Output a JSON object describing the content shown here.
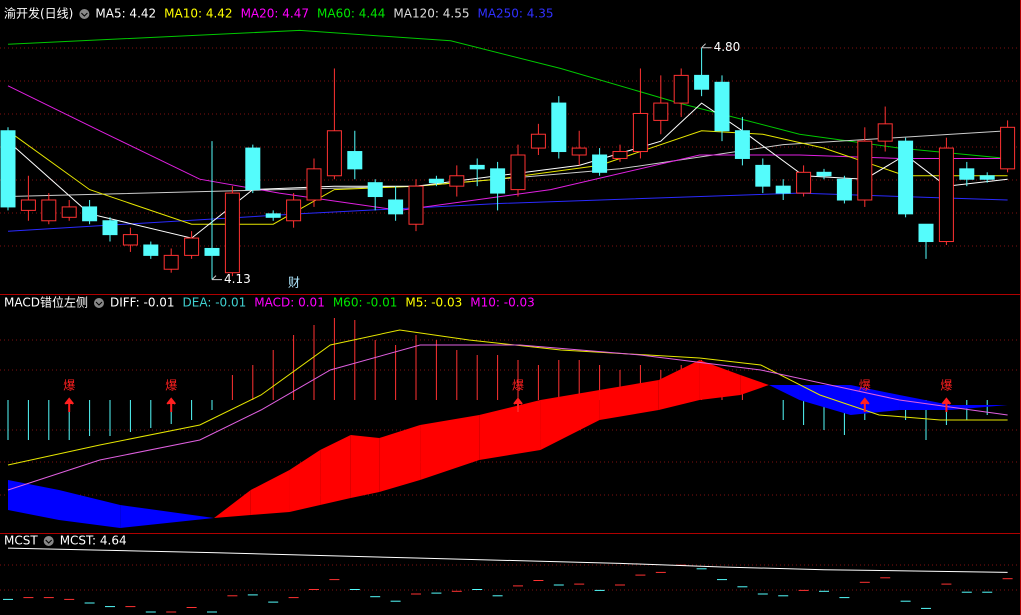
{
  "chart_data": [
    {
      "type": "candlestick",
      "title": "渝开发(日线)",
      "up_color": "#ff3232",
      "down_color": "#54fcfc",
      "ylim": [
        4.1,
        4.88
      ],
      "legend": [
        {
          "text": "MA5: 4.42",
          "color": "#ffffff"
        },
        {
          "text": "MA10: 4.42",
          "color": "#ffff00"
        },
        {
          "text": "MA20: 4.47",
          "color": "#ff00ff"
        },
        {
          "text": "MA60: 4.44",
          "color": "#00e600"
        },
        {
          "text": "MA120: 4.55",
          "color": "#dddddd"
        },
        {
          "text": "MA250: 4.35",
          "color": "#3030ff"
        }
      ],
      "candles": {
        "open": [
          4.56,
          4.33,
          4.3,
          4.31,
          4.34,
          4.3,
          4.23,
          4.23,
          4.16,
          4.2,
          4.22,
          4.15,
          4.51,
          4.32,
          4.3,
          4.36,
          4.43,
          4.5,
          4.41,
          4.36,
          4.29,
          4.42,
          4.4,
          4.46,
          4.45,
          4.39,
          4.51,
          4.64,
          4.49,
          4.49,
          4.48,
          4.5,
          4.59,
          4.64,
          4.72,
          4.7,
          4.56,
          4.46,
          4.4,
          4.38,
          4.44,
          4.42,
          4.36,
          4.53,
          4.53,
          4.29,
          4.24,
          4.45,
          4.43,
          4.45
        ],
        "high": [
          4.57,
          4.43,
          4.38,
          4.36,
          4.36,
          4.31,
          4.28,
          4.24,
          4.22,
          4.27,
          4.53,
          4.4,
          4.52,
          4.33,
          4.38,
          4.48,
          4.74,
          4.56,
          4.42,
          4.4,
          4.42,
          4.43,
          4.46,
          4.48,
          4.47,
          4.52,
          4.58,
          4.66,
          4.56,
          4.51,
          4.52,
          4.74,
          4.72,
          4.74,
          4.8,
          4.72,
          4.6,
          4.48,
          4.42,
          4.46,
          4.45,
          4.43,
          4.57,
          4.63,
          4.54,
          4.29,
          4.54,
          4.47,
          4.44,
          4.59
        ],
        "low": [
          4.33,
          4.3,
          4.29,
          4.3,
          4.29,
          4.24,
          4.21,
          4.19,
          4.15,
          4.19,
          4.13,
          4.14,
          4.38,
          4.3,
          4.28,
          4.34,
          4.42,
          4.42,
          4.33,
          4.3,
          4.27,
          4.4,
          4.37,
          4.4,
          4.33,
          4.37,
          4.49,
          4.48,
          4.46,
          4.43,
          4.47,
          4.48,
          4.55,
          4.6,
          4.66,
          4.53,
          4.46,
          4.38,
          4.36,
          4.37,
          4.42,
          4.35,
          4.34,
          4.5,
          4.31,
          4.19,
          4.23,
          4.4,
          4.41,
          4.44
        ],
        "close": [
          4.34,
          4.36,
          4.36,
          4.34,
          4.3,
          4.26,
          4.26,
          4.2,
          4.2,
          4.25,
          4.2,
          4.38,
          4.39,
          4.31,
          4.36,
          4.45,
          4.56,
          4.45,
          4.37,
          4.32,
          4.4,
          4.41,
          4.43,
          4.45,
          4.38,
          4.49,
          4.55,
          4.5,
          4.51,
          4.44,
          4.5,
          4.61,
          4.64,
          4.72,
          4.68,
          4.56,
          4.48,
          4.4,
          4.38,
          4.44,
          4.43,
          4.36,
          4.53,
          4.58,
          4.32,
          4.24,
          4.51,
          4.42,
          4.42,
          4.57
        ]
      },
      "lines": [
        {
          "color": "#00c800",
          "x": [
            0,
            14.3,
            21.7,
            27.1,
            32.9,
            38.8,
            43.7,
            49
          ],
          "values": [
            4.81,
            4.85,
            4.82,
            4.74,
            4.64,
            4.55,
            4.51,
            4.48
          ]
        },
        {
          "color": "#2a2aff",
          "x": [
            0,
            14.3,
            24.1,
            38.8,
            49
          ],
          "values": [
            4.27,
            4.32,
            4.35,
            4.38,
            4.36
          ]
        },
        {
          "color": "#cccccc",
          "x": [
            0,
            20,
            30,
            38,
            49
          ],
          "values": [
            4.37,
            4.4,
            4.45,
            4.52,
            4.56
          ]
        },
        {
          "color": "#e020e0",
          "x": [
            0,
            4.5,
            9.4,
            13.3,
            19.2,
            26.6,
            33.9,
            38.8,
            43.7,
            49
          ],
          "values": [
            4.69,
            4.56,
            4.42,
            4.38,
            4.33,
            4.39,
            4.49,
            4.49,
            4.48,
            4.48
          ]
        },
        {
          "color": "#e6e600",
          "x": [
            0,
            4,
            9,
            13,
            16,
            20,
            24,
            29,
            34,
            37,
            40,
            44,
            49
          ],
          "values": [
            4.56,
            4.39,
            4.29,
            4.29,
            4.39,
            4.4,
            4.42,
            4.46,
            4.56,
            4.55,
            4.51,
            4.43,
            4.43
          ]
        },
        {
          "color": "#ffffff",
          "x": [
            0,
            4,
            9,
            12,
            16,
            20,
            24,
            28,
            32,
            34,
            36,
            39,
            42,
            44,
            46,
            49
          ],
          "values": [
            4.53,
            4.32,
            4.25,
            4.39,
            4.4,
            4.4,
            4.43,
            4.46,
            4.53,
            4.64,
            4.56,
            4.43,
            4.42,
            4.49,
            4.4,
            4.42
          ]
        }
      ],
      "annotations": [
        {
          "text": "4.80",
          "value": 4.8,
          "x": 34
        },
        {
          "text": "4.13",
          "value": 4.13,
          "x": 10
        }
      ],
      "event": "财"
    },
    {
      "type": "macd",
      "title": "MACD错位左侧",
      "ylim": [
        -0.066,
        0.051
      ],
      "up_color": "#ff3232",
      "down_color": "#54fcfc",
      "legend": [
        {
          "text": "DIFF: -0.01",
          "color": "#ffffff"
        },
        {
          "text": "DEA: -0.01",
          "color": "#40d0d0"
        },
        {
          "text": "MACD: 0.01",
          "color": "#ff00ff"
        },
        {
          "text": "M60: -0.01",
          "color": "#00e600"
        },
        {
          "text": "M5: -0.03",
          "color": "#ffff00"
        },
        {
          "text": "M10: -0.03",
          "color": "#ff00ff"
        }
      ],
      "bars": [
        -0.02,
        -0.02,
        -0.02,
        -0.02,
        -0.018,
        -0.018,
        -0.016,
        -0.014,
        -0.012,
        -0.01,
        -0.005,
        0.0125,
        0.0175,
        0.025,
        0.0325,
        0.0375,
        0.041,
        0.04,
        0.03,
        0.0275,
        0.0325,
        0.03,
        0.025,
        0.0225,
        0.0225,
        0.02,
        0.0175,
        0.02,
        0.02,
        0.0175,
        0.015,
        0.0175,
        0.015,
        0.0175,
        0.02,
        0.015,
        0.0075,
        0,
        -0.01,
        -0.0125,
        -0.015,
        -0.0175,
        -0.01,
        -0.005,
        -0.01,
        -0.02,
        -0.0125,
        -0.01,
        -0.0075,
        0
      ],
      "lines": [
        {
          "color": "#e6e600",
          "x": [
            0,
            4.5,
            9.4,
            12.4,
            15.8,
            19.2,
            22.6,
            27.1,
            33.9,
            36.9,
            39.8,
            42.7,
            45.7,
            49
          ],
          "values": [
            -0.0325,
            -0.0225,
            -0.0125,
            0.0025,
            0.0275,
            0.035,
            0.03,
            0.025,
            0.021,
            0.0175,
            0.0025,
            -0.0075,
            -0.01,
            -0.01
          ]
        },
        {
          "color": "#e060e0",
          "x": [
            0,
            4.5,
            9.4,
            12.4,
            15.8,
            20.2,
            25.1,
            31,
            36.9,
            40.3,
            43.7,
            49
          ],
          "values": [
            -0.045,
            -0.03,
            -0.02,
            -0.005,
            0.015,
            0.0275,
            0.0275,
            0.0225,
            0.015,
            0.0075,
            0,
            -0.0075
          ]
        }
      ],
      "band": {
        "colors": [
          "#ff0000",
          "#0000ff"
        ],
        "x": [
          0,
          2.5,
          5.5,
          10.1,
          11.9,
          13.8,
          15.3,
          16.8,
          18.2,
          20.2,
          23.1,
          26.1,
          29,
          31.9,
          33.9,
          35.9,
          37.3,
          38.8,
          41.3,
          43.7,
          46.2,
          49
        ],
        "a": [
          -0.055,
          -0.06,
          -0.064,
          -0.059,
          -0.045,
          -0.035,
          -0.025,
          -0.0175,
          -0.019,
          -0.0125,
          -0.0075,
          0,
          0.005,
          0.01,
          0.02,
          0.0125,
          0.0075,
          0,
          -0.0075,
          -0.005,
          -0.005,
          -0.0025
        ],
        "b": [
          -0.04,
          -0.045,
          -0.0525,
          -0.059,
          -0.0575,
          -0.056,
          -0.0525,
          -0.049,
          -0.046,
          -0.04,
          -0.03,
          -0.025,
          -0.01,
          -0.005,
          0,
          0.0025,
          0.0075,
          0.0075,
          0.0075,
          0.0025,
          -0.0025,
          -0.0025
        ]
      },
      "marker_color": "#ff2020",
      "markers": [
        {
          "x": 3,
          "label": "爆"
        },
        {
          "x": 8,
          "label": "爆"
        },
        {
          "x": 25,
          "label": "爆"
        },
        {
          "x": 42,
          "label": "爆"
        },
        {
          "x": 46,
          "label": "爆"
        }
      ]
    },
    {
      "type": "line",
      "title": "MCST",
      "ylim": [
        4.2,
        5.0
      ],
      "color": "#ffffff",
      "legend": [
        {
          "text": "MCST: 4.64",
          "color": "#ffffff"
        }
      ],
      "x": [
        0,
        10,
        20,
        30,
        35,
        40,
        49
      ],
      "values": [
        4.91,
        4.86,
        4.8,
        4.74,
        4.7,
        4.67,
        4.64
      ]
    }
  ]
}
